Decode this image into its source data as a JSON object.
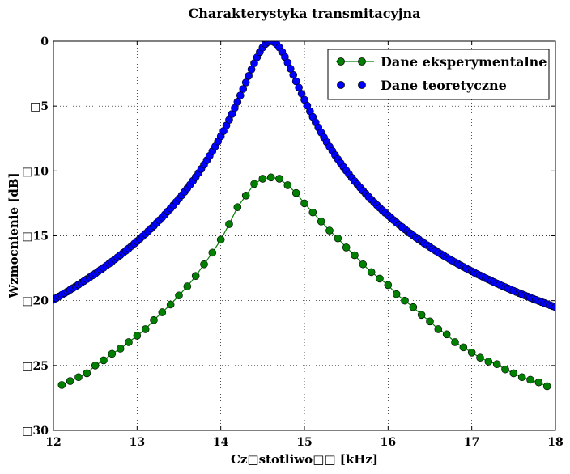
{
  "chart_data": {
    "type": "line",
    "title": "Charakterystyka transmitacyjna",
    "xlabel": "Cz□stotliwo□□ [kHz]",
    "ylabel": "Wzmocnienie [dB]",
    "xlim": [
      12,
      18
    ],
    "ylim": [
      -30,
      0
    ],
    "x_ticks": [
      "12",
      "13",
      "14",
      "15",
      "16",
      "17",
      "18"
    ],
    "y_ticks": [
      "0",
      "□5",
      "□10",
      "□15",
      "□20",
      "□25",
      "□30"
    ],
    "grid": true,
    "legend_position": "top-right",
    "series": [
      {
        "name": "Dane eksperymentalne",
        "color": "#008000",
        "style": "line-with-circle-markers",
        "x": [
          12.1,
          12.2,
          12.3,
          12.4,
          12.5,
          12.6,
          12.7,
          12.8,
          12.9,
          13.0,
          13.1,
          13.2,
          13.3,
          13.4,
          13.5,
          13.6,
          13.7,
          13.8,
          13.9,
          14.0,
          14.1,
          14.2,
          14.3,
          14.4,
          14.5,
          14.6,
          14.7,
          14.8,
          14.9,
          15.0,
          15.1,
          15.2,
          15.3,
          15.4,
          15.5,
          15.6,
          15.7,
          15.8,
          15.9,
          16.0,
          16.1,
          16.2,
          16.3,
          16.4,
          16.5,
          16.6,
          16.7,
          16.8,
          16.9,
          17.0,
          17.1,
          17.2,
          17.3,
          17.4,
          17.5,
          17.6,
          17.7,
          17.8,
          17.9
        ],
        "y": [
          -26.5,
          -26.2,
          -25.9,
          -25.6,
          -25.0,
          -24.6,
          -24.1,
          -23.7,
          -23.2,
          -22.7,
          -22.2,
          -21.5,
          -20.9,
          -20.3,
          -19.6,
          -18.9,
          -18.1,
          -17.2,
          -16.3,
          -15.3,
          -14.1,
          -12.8,
          -11.9,
          -11.0,
          -10.6,
          -10.5,
          -10.6,
          -11.1,
          -11.7,
          -12.5,
          -13.2,
          -13.9,
          -14.6,
          -15.2,
          -15.9,
          -16.5,
          -17.2,
          -17.8,
          -18.3,
          -18.8,
          -19.5,
          -20.0,
          -20.5,
          -21.1,
          -21.6,
          -22.2,
          -22.6,
          -23.2,
          -23.6,
          -24.0,
          -24.4,
          -24.7,
          -24.9,
          -25.3,
          -25.6,
          -25.9,
          -26.1,
          -26.3,
          -26.6
        ]
      },
      {
        "name": "Dane teoretyczne",
        "color": "#0000ff",
        "style": "circle-markers",
        "model": {
          "f0": 14.6,
          "Q": 25,
          "x_start": 12.0,
          "x_end": 18.0,
          "points": 181
        }
      }
    ]
  }
}
